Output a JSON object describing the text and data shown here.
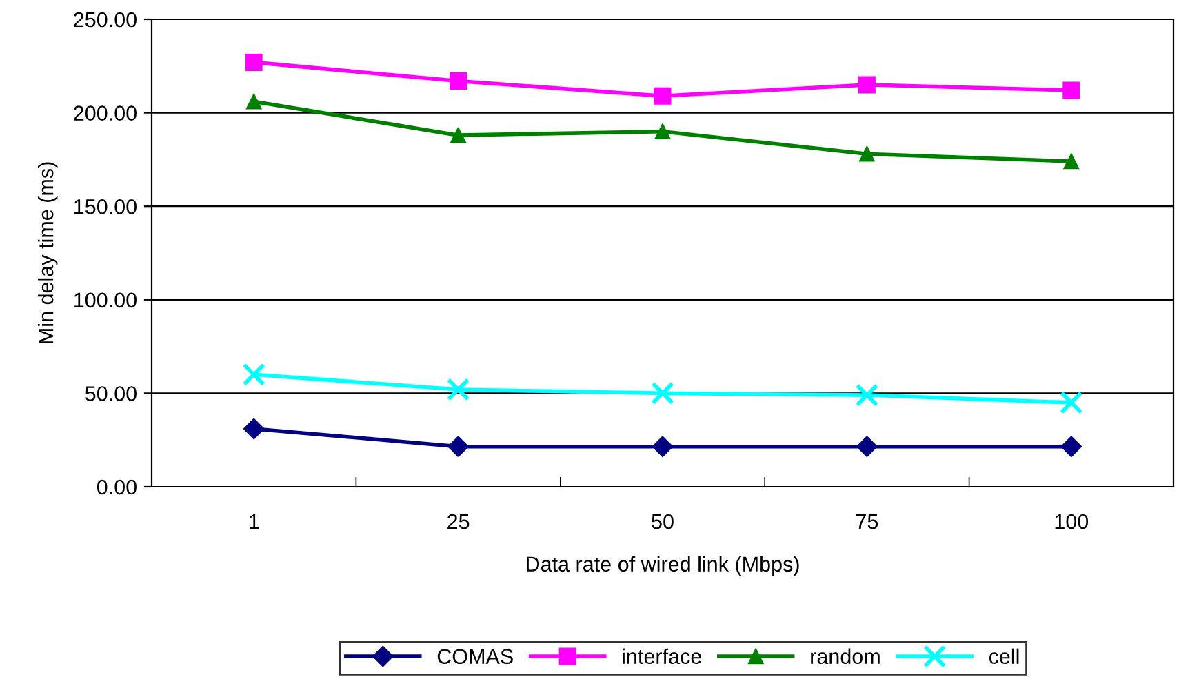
{
  "chart_data": {
    "type": "line",
    "xlabel": "Data rate of wired link (Mbps)",
    "ylabel": "Min delay time (ms)",
    "categories": [
      "1",
      "25",
      "50",
      "75",
      "100"
    ],
    "ylim": [
      0,
      250
    ],
    "yticks": [
      {
        "value": 0,
        "label": "0.00"
      },
      {
        "value": 50,
        "label": "50.00"
      },
      {
        "value": 100,
        "label": "100.00"
      },
      {
        "value": 150,
        "label": "150.00"
      },
      {
        "value": 200,
        "label": "200.00"
      },
      {
        "value": 250,
        "label": "250.00"
      }
    ],
    "grid": "y",
    "legend": "bottom",
    "series": [
      {
        "name": "COMAS",
        "color": "#000080",
        "marker": "diamond",
        "values": [
          31,
          21.5,
          21.5,
          21.5,
          21.5
        ]
      },
      {
        "name": "interface",
        "color": "#ff00ff",
        "marker": "square",
        "values": [
          227,
          217,
          209,
          215,
          212
        ]
      },
      {
        "name": "random",
        "color": "#008000",
        "marker": "triangle",
        "values": [
          206,
          188,
          190,
          178,
          174
        ]
      },
      {
        "name": "cell",
        "color": "#00ffff",
        "marker": "cross",
        "values": [
          60,
          52,
          50,
          49,
          45
        ]
      }
    ]
  }
}
